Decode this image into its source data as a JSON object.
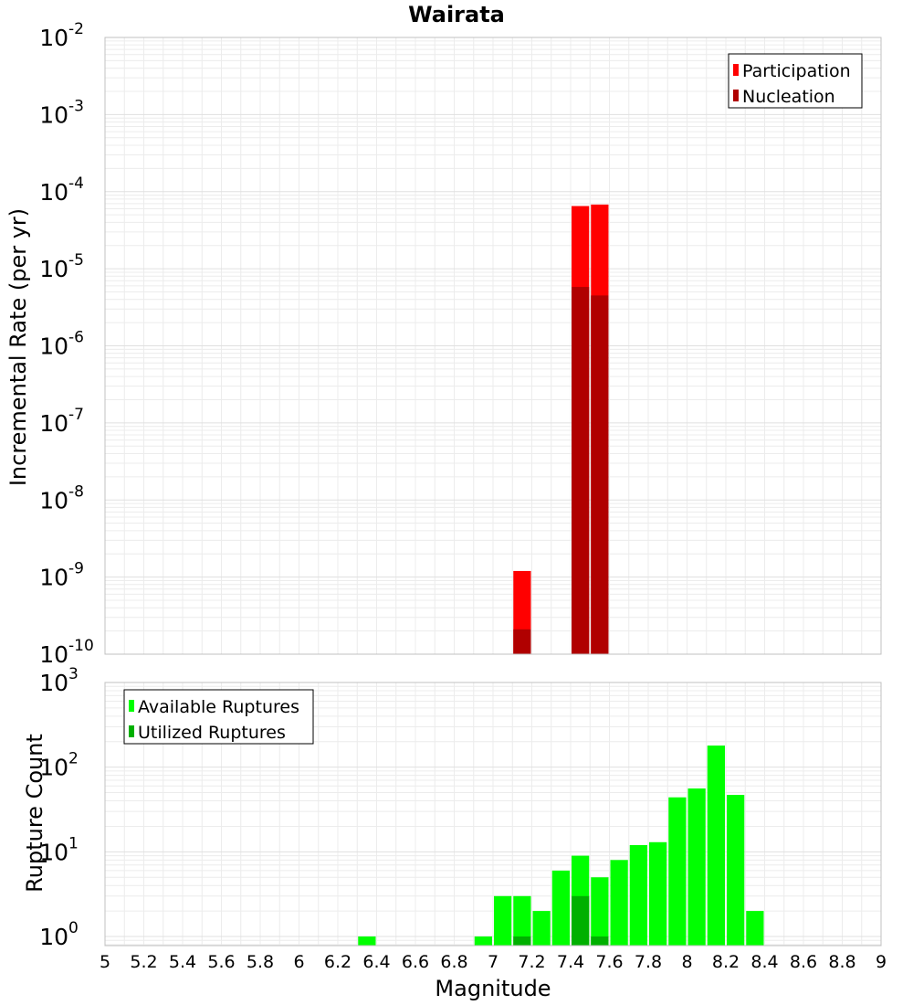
{
  "colors": {
    "participation": "#ff0000",
    "nucleation": "#b00000",
    "available": "#00ff00",
    "utilized": "#00b000",
    "frame": "#c0c0c0",
    "grid": "#ececec"
  },
  "chart_data": [
    {
      "type": "bar",
      "title": "Wairata",
      "xlabel": "",
      "ylabel": "Incremental Rate (per yr)",
      "yscale": "log",
      "ylim": [
        1e-10,
        0.01
      ],
      "xlim": [
        5,
        9
      ],
      "bar_width": 0.1,
      "grid": true,
      "legend_position": "top-right",
      "y_tick_labels": [
        {
          "base": "10",
          "exp": "-10",
          "value": 1e-10
        },
        {
          "base": "10",
          "exp": "-9",
          "value": 1e-09
        },
        {
          "base": "10",
          "exp": "-8",
          "value": 1e-08
        },
        {
          "base": "10",
          "exp": "-7",
          "value": 1e-07
        },
        {
          "base": "10",
          "exp": "-6",
          "value": 1e-06
        },
        {
          "base": "10",
          "exp": "-5",
          "value": 1e-05
        },
        {
          "base": "10",
          "exp": "-4",
          "value": 0.0001
        },
        {
          "base": "10",
          "exp": "-3",
          "value": 0.001
        },
        {
          "base": "10",
          "exp": "-2",
          "value": 0.01
        }
      ],
      "series": [
        {
          "name": "Participation",
          "color": "#ff0000",
          "points": [
            {
              "x": 7.15,
              "y": 1.2e-09
            },
            {
              "x": 7.45,
              "y": 6.5e-05
            },
            {
              "x": 7.55,
              "y": 6.8e-05
            }
          ]
        },
        {
          "name": "Nucleation",
          "color": "#b00000",
          "points": [
            {
              "x": 7.15,
              "y": 2.1e-10
            },
            {
              "x": 7.45,
              "y": 5.8e-06
            },
            {
              "x": 7.55,
              "y": 4.5e-06
            }
          ]
        }
      ]
    },
    {
      "type": "bar",
      "title": "",
      "xlabel": "Magnitude",
      "ylabel": "Rupture Count",
      "yscale": "log",
      "ylim": [
        0.78,
        1000
      ],
      "xlim": [
        5,
        9
      ],
      "bar_width": 0.1,
      "grid": true,
      "legend_position": "top-left",
      "x_tick_labels": [
        "5",
        "5.2",
        "5.4",
        "5.6",
        "5.8",
        "6",
        "6.2",
        "6.4",
        "6.6",
        "6.8",
        "7",
        "7.2",
        "7.4",
        "7.6",
        "7.8",
        "8",
        "8.2",
        "8.4",
        "8.6",
        "8.8",
        "9"
      ],
      "y_tick_labels": [
        {
          "base": "10",
          "exp": "0",
          "value": 1
        },
        {
          "base": "10",
          "exp": "1",
          "value": 10
        },
        {
          "base": "10",
          "exp": "2",
          "value": 100
        },
        {
          "base": "10",
          "exp": "3",
          "value": 1000
        }
      ],
      "series": [
        {
          "name": "Available Ruptures",
          "color": "#00ff00",
          "points": [
            {
              "x": 6.35,
              "y": 1
            },
            {
              "x": 6.95,
              "y": 1
            },
            {
              "x": 7.05,
              "y": 3
            },
            {
              "x": 7.15,
              "y": 3
            },
            {
              "x": 7.25,
              "y": 2
            },
            {
              "x": 7.35,
              "y": 6
            },
            {
              "x": 7.45,
              "y": 9
            },
            {
              "x": 7.55,
              "y": 5
            },
            {
              "x": 7.65,
              "y": 8
            },
            {
              "x": 7.75,
              "y": 12
            },
            {
              "x": 7.85,
              "y": 13
            },
            {
              "x": 7.95,
              "y": 44
            },
            {
              "x": 8.05,
              "y": 56
            },
            {
              "x": 8.15,
              "y": 180
            },
            {
              "x": 8.25,
              "y": 47
            },
            {
              "x": 8.35,
              "y": 2
            }
          ]
        },
        {
          "name": "Utilized Ruptures",
          "color": "#00b000",
          "points": [
            {
              "x": 7.15,
              "y": 1
            },
            {
              "x": 7.45,
              "y": 3
            },
            {
              "x": 7.55,
              "y": 1
            }
          ]
        }
      ]
    }
  ]
}
